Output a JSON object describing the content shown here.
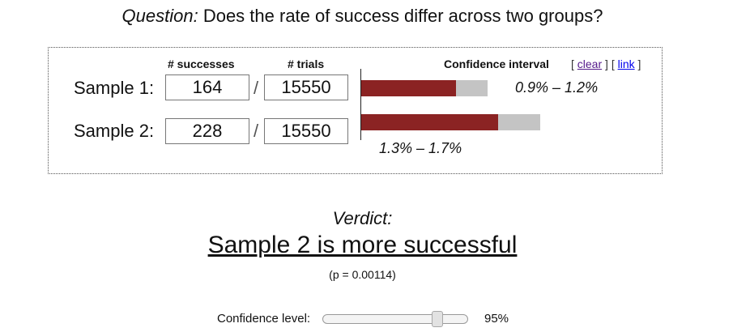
{
  "question": {
    "label": "Question:",
    "text": "Does the rate of success differ across two groups?"
  },
  "headers": {
    "successes": "# successes",
    "trials": "# trials",
    "confidence_interval": "Confidence interval",
    "bracket_open": "[",
    "bracket_close": "]",
    "clear_link": "clear",
    "link_link": "link"
  },
  "samples": [
    {
      "label": "Sample 1:",
      "successes": "164",
      "separator": "/",
      "trials": "15550",
      "ci_text": "0.9% – 1.2%",
      "ci_low": 0.9,
      "ci_high": 1.2,
      "bar_fill_color": "#8b2323",
      "bar_track_color": "#c4c4c4"
    },
    {
      "label": "Sample 2:",
      "successes": "228",
      "separator": "/",
      "trials": "15550",
      "ci_text": "1.3% – 1.7%",
      "ci_low": 1.3,
      "ci_high": 1.7,
      "bar_fill_color": "#8b2323",
      "bar_track_color": "#c4c4c4"
    }
  ],
  "verdict": {
    "label": "Verdict:",
    "text": "Sample 2 is more successful",
    "p_value": "(p = 0.00114)"
  },
  "confidence": {
    "label": "Confidence level:",
    "value_text": "95%",
    "level_fraction": 0.8
  }
}
